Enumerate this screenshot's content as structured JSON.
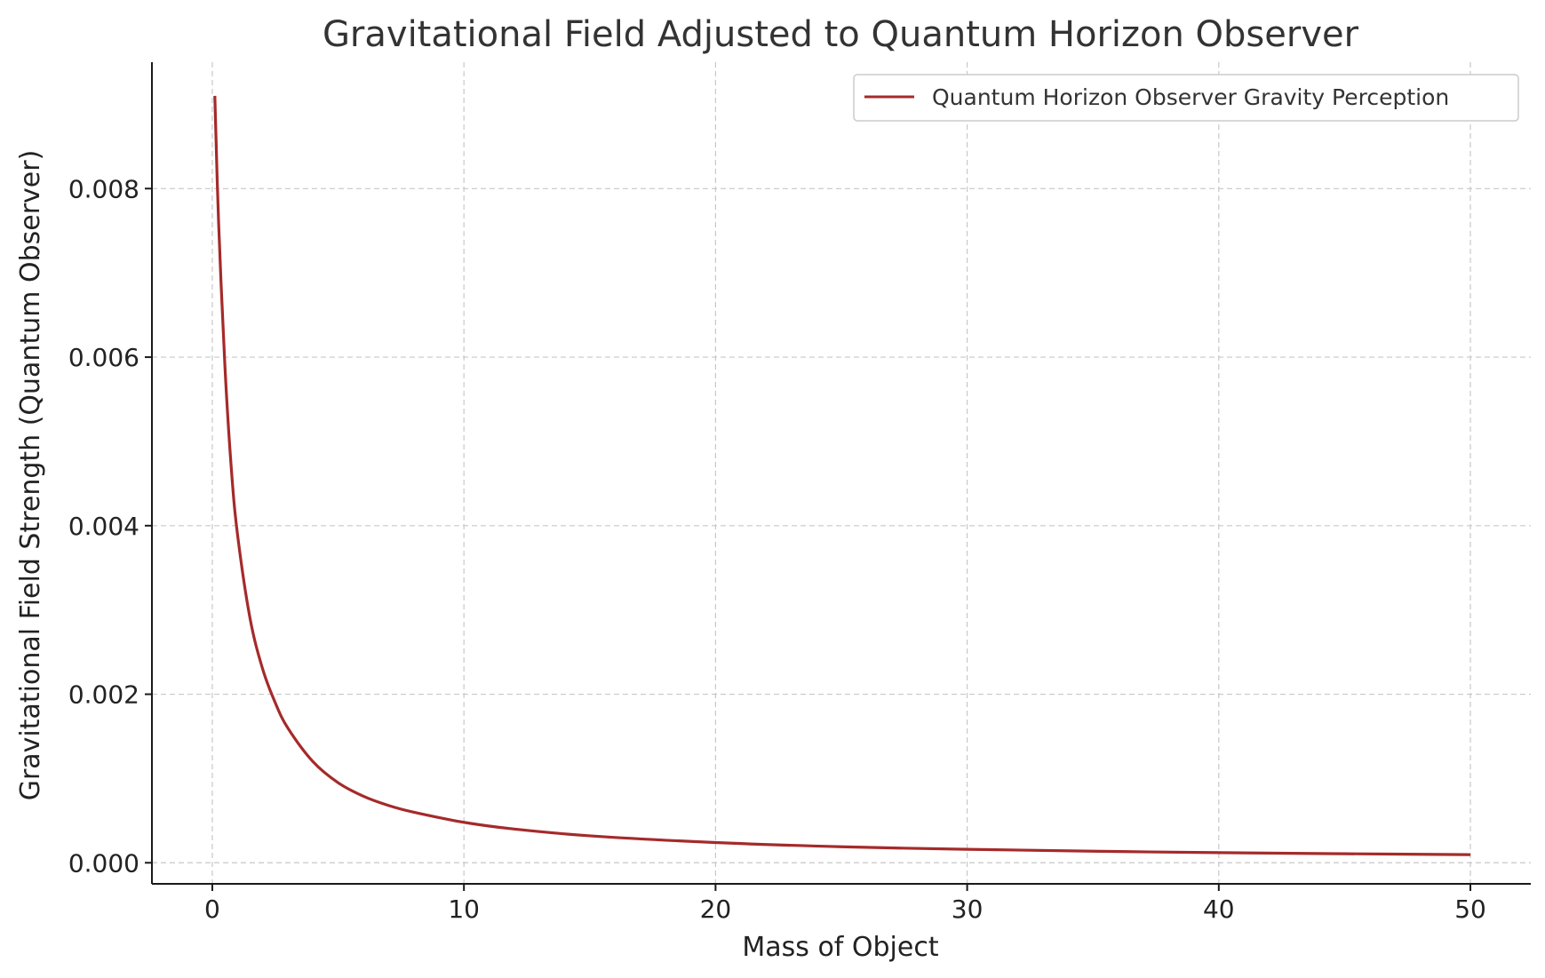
{
  "chart_data": {
    "type": "line",
    "title": "Gravitational Field Adjusted to Quantum Horizon Observer",
    "xlabel": "Mass of Object",
    "ylabel": "Gravitational Field Strength (Quantum Observer)",
    "xlim": [
      -2.4,
      52.4
    ],
    "ylim": [
      -0.00025,
      0.0095
    ],
    "xticks": [
      0,
      10,
      20,
      30,
      40,
      50
    ],
    "xtick_labels": [
      "0",
      "10",
      "20",
      "30",
      "40",
      "50"
    ],
    "yticks": [
      0.0,
      0.002,
      0.004,
      0.006,
      0.008
    ],
    "ytick_labels": [
      "0.000",
      "0.002",
      "0.004",
      "0.006",
      "0.008"
    ],
    "grid": true,
    "legend_position": "top-right",
    "series": [
      {
        "name": "Quantum Horizon Observer Gravity Perception",
        "color": "#a52a2a",
        "x": [
          0.1,
          0.25,
          0.5,
          0.75,
          1,
          1.5,
          2,
          2.5,
          3,
          4,
          5,
          6,
          7,
          8,
          10,
          12,
          15,
          20,
          25,
          30,
          35,
          40,
          45,
          50
        ],
        "y": [
          0.0091,
          0.0076,
          0.0059,
          0.0047,
          0.0039,
          0.0029,
          0.0023,
          0.0019,
          0.0016,
          0.0012,
          0.00095,
          0.00079,
          0.00068,
          0.0006,
          0.00048,
          0.0004,
          0.00032,
          0.00024,
          0.00019,
          0.00016,
          0.000137,
          0.00012,
          0.000107,
          9.6e-05
        ]
      }
    ]
  }
}
